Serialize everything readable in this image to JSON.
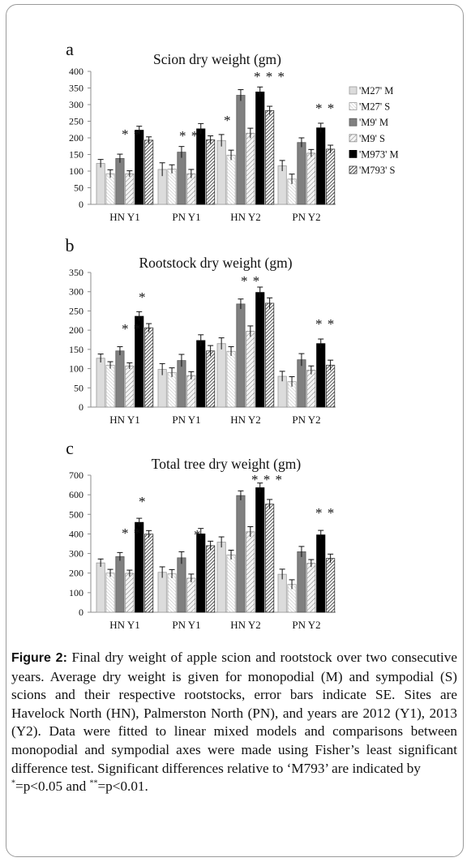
{
  "chart_data": [
    {
      "type": "bar",
      "panel": "a",
      "title": "Scion dry weight  (gm)",
      "categories": [
        "HN Y1",
        "PN Y1",
        "HN Y2",
        "PN Y2"
      ],
      "ylim": [
        0,
        400
      ],
      "yticks": [
        0,
        50,
        100,
        150,
        200,
        250,
        300,
        350,
        400
      ],
      "series": [
        {
          "name": "'M27' M",
          "values": [
            123,
            105,
            192,
            116
          ],
          "errors": [
            12,
            20,
            18,
            16
          ]
        },
        {
          "name": "'M27' S",
          "values": [
            92,
            106,
            148,
            76
          ],
          "errors": [
            12,
            13,
            15,
            15
          ]
        },
        {
          "name": "'M9' M",
          "values": [
            138,
            157,
            328,
            186
          ],
          "errors": [
            13,
            17,
            17,
            14
          ]
        },
        {
          "name": "'M9' S",
          "values": [
            92,
            92,
            214,
            154
          ],
          "errors": [
            9,
            13,
            15,
            11
          ]
        },
        {
          "name": "'M973' M",
          "values": [
            223,
            227,
            338,
            230
          ],
          "errors": [
            12,
            16,
            15,
            14
          ]
        },
        {
          "name": "'M793' S",
          "values": [
            193,
            194,
            282,
            166
          ],
          "errors": [
            10,
            12,
            13,
            12
          ]
        }
      ],
      "annotations": [
        {
          "category": "HN Y1",
          "text": "* *"
        },
        {
          "category": "PN Y1",
          "text": "* *"
        },
        {
          "category": "HN Y2",
          "text": "*"
        },
        {
          "category": "HN Y2",
          "text": "* * *"
        },
        {
          "category": "PN Y2",
          "text": "* *"
        }
      ]
    },
    {
      "type": "bar",
      "panel": "b",
      "title": "Rootstock dry weight  (gm)",
      "categories": [
        "HN Y1",
        "PN Y1",
        "HN Y2",
        "PN Y2"
      ],
      "ylim": [
        0,
        350
      ],
      "yticks": [
        0,
        50,
        100,
        150,
        200,
        250,
        300,
        350
      ],
      "series": [
        {
          "name": "'M27' M",
          "values": [
            127,
            98,
            165,
            80
          ],
          "errors": [
            11,
            15,
            15,
            13
          ]
        },
        {
          "name": "'M27' S",
          "values": [
            109,
            90,
            145,
            66
          ],
          "errors": [
            9,
            12,
            12,
            13
          ]
        },
        {
          "name": "'M9' M",
          "values": [
            146,
            121,
            268,
            123
          ],
          "errors": [
            11,
            16,
            13,
            16
          ]
        },
        {
          "name": "'M9' S",
          "values": [
            107,
            82,
            197,
            96
          ],
          "errors": [
            8,
            10,
            14,
            11
          ]
        },
        {
          "name": "'M973' M",
          "values": [
            236,
            173,
            298,
            165
          ],
          "errors": [
            12,
            15,
            14,
            12
          ]
        },
        {
          "name": "'M793' S",
          "values": [
            206,
            146,
            270,
            109
          ],
          "errors": [
            11,
            14,
            14,
            13
          ]
        }
      ],
      "annotations": [
        {
          "category": "HN Y1",
          "text": "* *"
        },
        {
          "category": "HN Y1",
          "text": "*"
        },
        {
          "category": "HN Y2",
          "text": "* *"
        },
        {
          "category": "PN Y2",
          "text": "* *"
        }
      ]
    },
    {
      "type": "bar",
      "panel": "c",
      "title": "Total tree dry weight  (gm)",
      "categories": [
        "HN Y1",
        "PN Y1",
        "HN Y2",
        "PN Y2"
      ],
      "ylim": [
        0,
        700
      ],
      "yticks": [
        0,
        100,
        200,
        300,
        400,
        500,
        600,
        700
      ],
      "series": [
        {
          "name": "'M27' M",
          "values": [
            252,
            204,
            358,
            194
          ],
          "errors": [
            20,
            28,
            27,
            26
          ]
        },
        {
          "name": "'M27' S",
          "values": [
            200,
            196,
            293,
            142
          ],
          "errors": [
            19,
            22,
            24,
            24
          ]
        },
        {
          "name": "'M9' M",
          "values": [
            284,
            278,
            596,
            309
          ],
          "errors": [
            21,
            31,
            24,
            27
          ]
        },
        {
          "name": "'M9' S",
          "values": [
            199,
            174,
            411,
            250
          ],
          "errors": [
            16,
            21,
            26,
            19
          ]
        },
        {
          "name": "'M973' M",
          "values": [
            459,
            400,
            636,
            395
          ],
          "errors": [
            21,
            28,
            24,
            23
          ]
        },
        {
          "name": "'M793' S",
          "values": [
            399,
            340,
            552,
            275
          ],
          "errors": [
            18,
            23,
            24,
            22
          ]
        }
      ],
      "annotations": [
        {
          "category": "HN Y1",
          "text": "* *"
        },
        {
          "category": "HN Y1",
          "text": "*"
        },
        {
          "category": "PN Y1",
          "text": "*"
        },
        {
          "category": "HN Y2",
          "text": "* * *"
        },
        {
          "category": "PN Y2",
          "text": "* *"
        }
      ]
    }
  ],
  "caption": {
    "label": "Figure 2:",
    "text_1": " Final dry weight of apple scion and rootstock over two consecutive years. Average dry weight is given for monopodial (M) and sympodial (S) scions and their respective rootstocks, error bars indicate SE. Sites are Havelock North (HN), Palmerston North (PN), and years are 2012 (Y1), 2013 (Y2). Data were fitted to linear mixed models and comparisons between monopodial and sympodial axes were made using Fisher’s least significant difference test. Significant differences relative to ",
    "text_ref": "‘M793’",
    "text_2": " are indicated by ",
    "sup_1": "*",
    "text_3": "=p<0.05 and ",
    "sup_2": "**",
    "text_4": "=p<0.01."
  },
  "colors": {
    "m27_m": "#dcdcdc",
    "m27_s": "#f2f2f2",
    "m9_m": "#808080",
    "m9_s": "#c8c8c8",
    "m973_m": "#000000",
    "m793_s": "#ffffff",
    "hatch": "#222222",
    "axis": "#8c8c8c"
  }
}
